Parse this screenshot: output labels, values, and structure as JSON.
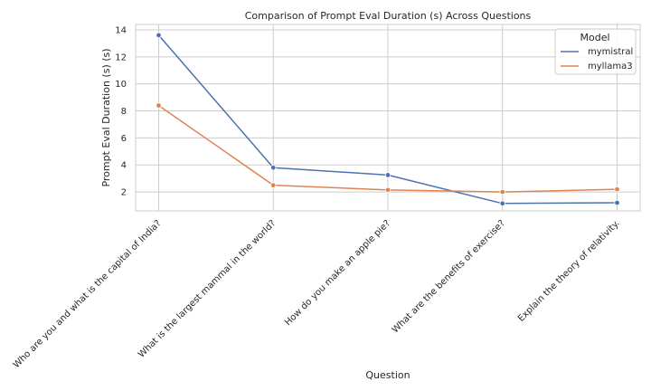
{
  "chart_data": {
    "type": "line",
    "title": "Comparison of Prompt Eval Duration (s) Across Questions",
    "xlabel": "Question",
    "ylabel": "Prompt Eval Duration (s) (s)",
    "categories": [
      "Who are you and what is the capital of India?",
      "What is the largest mammal in the world?",
      "How do you make an apple pie?",
      "What are the benefits of exercise?",
      "Explain the theory of relativity."
    ],
    "yticks": [
      "2",
      "4",
      "6",
      "8",
      "10",
      "12",
      "14"
    ],
    "ylim": [
      0.6,
      14.4
    ],
    "grid": true,
    "legend": {
      "title": "Model",
      "placement": "top-right"
    },
    "series": [
      {
        "name": "mymistral",
        "color": "#4c72b0",
        "values": [
          13.6,
          3.8,
          3.25,
          1.15,
          1.2
        ]
      },
      {
        "name": "myllama3",
        "color": "#dd8452",
        "values": [
          8.4,
          2.5,
          2.15,
          2.0,
          2.2
        ]
      }
    ]
  }
}
